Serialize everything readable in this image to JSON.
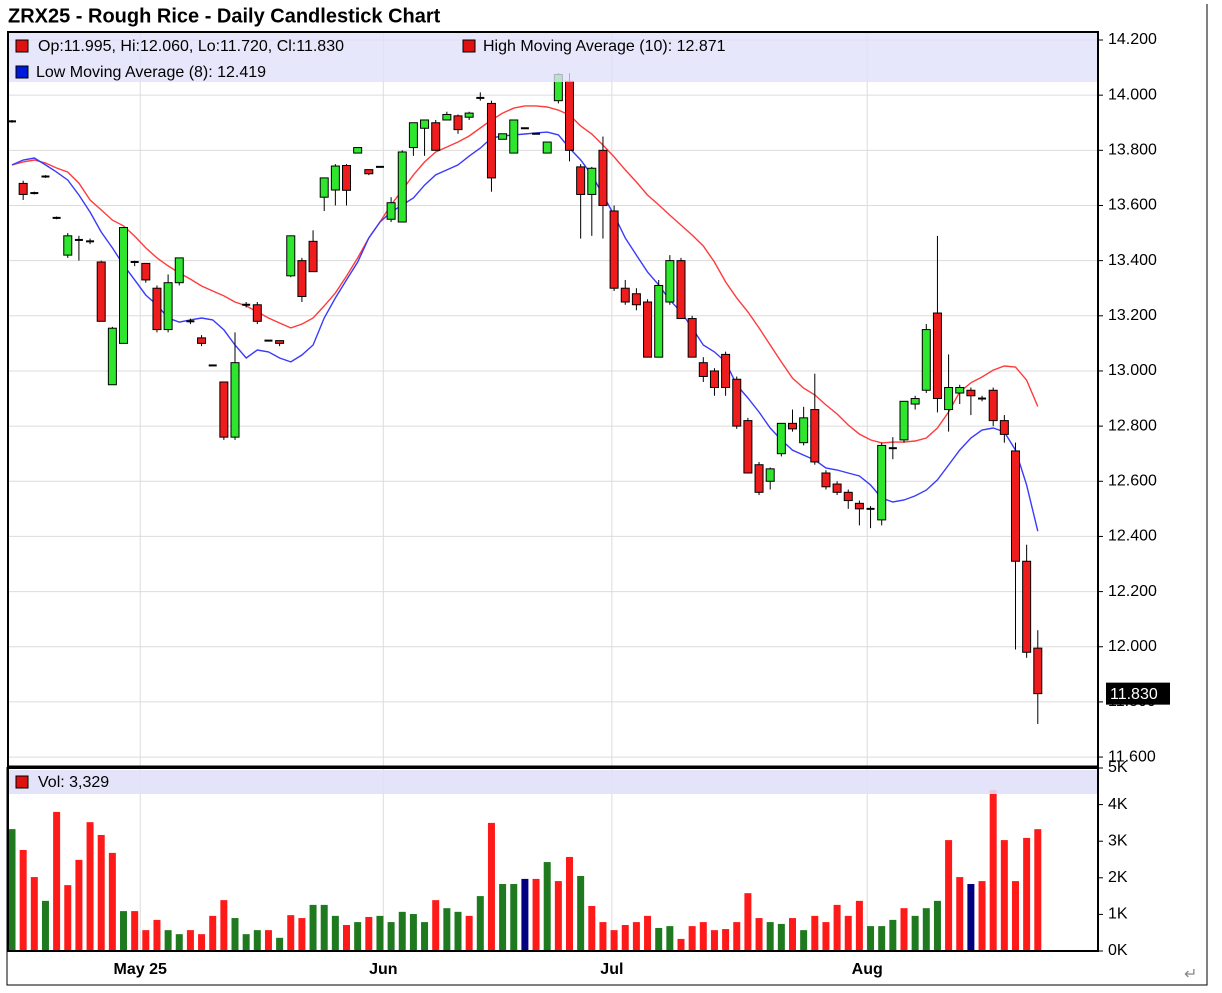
{
  "chart_data": {
    "type": "candlestick",
    "title": "ZRX25 - Rough Rice - Daily Candlestick Chart",
    "xlim": [
      -0.36,
      97.4
    ],
    "xticks": [
      {
        "value": 11.5,
        "label": "May 25"
      },
      {
        "value": 33.3,
        "label": "Jun"
      },
      {
        "value": 53.8,
        "label": "Jul"
      },
      {
        "value": 76.7,
        "label": "Aug"
      }
    ],
    "ylim": [
      11.564,
      14.229
    ],
    "yticks": [
      {
        "value": 11.6,
        "label": "11.600"
      },
      {
        "value": 11.8,
        "label": "11.800"
      },
      {
        "value": 12.0,
        "label": "12.000"
      },
      {
        "value": 12.2,
        "label": "12.200"
      },
      {
        "value": 12.4,
        "label": "12.400"
      },
      {
        "value": 12.6,
        "label": "12.600"
      },
      {
        "value": 12.8,
        "label": "12.800"
      },
      {
        "value": 13.0,
        "label": "13.000"
      },
      {
        "value": 13.2,
        "label": "13.200"
      },
      {
        "value": 13.4,
        "label": "13.400"
      },
      {
        "value": 13.6,
        "label": "13.600"
      },
      {
        "value": 13.8,
        "label": "13.800"
      },
      {
        "value": 14.0,
        "label": "14.000"
      },
      {
        "value": 14.2,
        "label": "14.200"
      }
    ],
    "grid": true,
    "ohlc": {
      "legend": "Op:11.995, Hi:12.060, Lo:11.720, Cl:11.830",
      "legend_color": "#e01010",
      "up_color": "#2ee62e",
      "down_color": "#ee1c1c",
      "open": [
        13.905,
        13.68,
        13.645,
        13.705,
        13.555,
        13.42,
        13.475,
        13.47,
        13.395,
        12.95,
        13.1,
        13.395,
        13.39,
        13.3,
        13.15,
        13.32,
        13.18,
        13.12,
        13.02,
        12.96,
        12.76,
        13.24,
        13.24,
        13.11,
        13.11,
        13.345,
        13.4,
        13.47,
        13.63,
        13.656,
        13.745,
        13.79,
        13.73,
        13.74,
        13.55,
        13.54,
        13.81,
        13.88,
        13.9,
        13.91,
        13.925,
        13.92,
        13.99,
        13.97,
        13.84,
        13.79,
        13.88,
        13.86,
        13.79,
        13.98,
        14.05,
        13.74,
        13.64,
        13.8,
        13.58,
        13.3,
        13.28,
        13.25,
        13.05,
        13.25,
        13.4,
        13.19,
        13.03,
        13.0,
        13.06,
        12.97,
        12.82,
        12.66,
        12.6,
        12.7,
        12.81,
        12.74,
        12.86,
        12.63,
        12.59,
        12.56,
        12.52,
        12.5,
        12.46,
        12.72,
        12.75,
        12.88,
        12.93,
        13.21,
        12.86,
        12.92,
        12.93,
        12.9,
        12.93,
        12.82,
        12.71,
        12.31,
        11.995
      ],
      "high": [
        13.91,
        13.69,
        13.65,
        13.71,
        13.56,
        13.5,
        13.49,
        13.48,
        13.4,
        13.16,
        13.52,
        13.4,
        13.39,
        13.31,
        13.35,
        13.41,
        13.19,
        13.13,
        13.02,
        12.96,
        13.14,
        13.25,
        13.25,
        13.11,
        13.11,
        13.49,
        13.41,
        13.51,
        13.7,
        13.75,
        13.75,
        13.81,
        13.73,
        13.74,
        13.63,
        13.8,
        13.9,
        13.91,
        13.91,
        13.94,
        13.93,
        13.94,
        14.01,
        13.98,
        13.86,
        13.91,
        13.88,
        13.86,
        13.83,
        14.08,
        14.08,
        13.75,
        13.74,
        13.85,
        13.6,
        13.33,
        13.3,
        13.26,
        13.33,
        13.42,
        13.41,
        13.2,
        13.05,
        13.01,
        13.07,
        12.98,
        12.83,
        12.67,
        12.65,
        12.81,
        12.86,
        12.87,
        12.99,
        12.64,
        12.6,
        12.57,
        12.53,
        12.51,
        12.74,
        12.76,
        12.89,
        12.91,
        13.17,
        13.49,
        13.06,
        12.95,
        12.94,
        12.91,
        12.94,
        12.84,
        12.74,
        12.37,
        12.06
      ],
      "low": [
        13.9,
        13.62,
        13.64,
        13.7,
        13.55,
        13.41,
        13.4,
        13.46,
        13.18,
        12.95,
        13.1,
        13.38,
        13.32,
        13.14,
        13.14,
        13.31,
        13.17,
        13.09,
        13.02,
        12.75,
        12.75,
        13.23,
        13.17,
        13.11,
        13.09,
        13.34,
        13.25,
        13.36,
        13.58,
        13.6,
        13.6,
        13.79,
        13.71,
        13.74,
        13.54,
        13.54,
        13.78,
        13.78,
        13.8,
        13.91,
        13.86,
        13.91,
        13.98,
        13.65,
        13.84,
        13.79,
        13.88,
        13.86,
        13.79,
        13.97,
        13.76,
        13.48,
        13.49,
        13.48,
        13.29,
        13.24,
        13.22,
        13.05,
        13.05,
        13.24,
        13.19,
        13.05,
        12.96,
        12.91,
        12.91,
        12.79,
        12.63,
        12.55,
        12.57,
        12.69,
        12.78,
        12.73,
        12.66,
        12.57,
        12.55,
        12.5,
        12.44,
        12.43,
        12.44,
        12.68,
        12.74,
        12.86,
        12.92,
        12.85,
        12.78,
        12.88,
        12.84,
        12.89,
        12.8,
        12.74,
        11.99,
        11.96,
        11.72
      ],
      "close": [
        13.905,
        13.64,
        13.645,
        13.705,
        13.555,
        13.49,
        13.475,
        13.47,
        13.18,
        13.155,
        13.52,
        13.395,
        13.33,
        13.15,
        13.32,
        13.41,
        13.18,
        13.1,
        13.02,
        12.76,
        13.03,
        13.24,
        13.18,
        13.11,
        13.1,
        13.49,
        13.27,
        13.36,
        13.7,
        13.743,
        13.655,
        13.81,
        13.715,
        13.74,
        13.61,
        13.794,
        13.9,
        13.91,
        13.8,
        13.93,
        13.875,
        13.935,
        13.99,
        13.7,
        13.86,
        13.91,
        13.88,
        13.86,
        13.83,
        14.075,
        13.8,
        13.64,
        13.735,
        13.6,
        13.3,
        13.25,
        13.24,
        13.05,
        13.31,
        13.4,
        13.19,
        13.05,
        12.98,
        12.94,
        12.94,
        12.8,
        12.63,
        12.56,
        12.645,
        12.81,
        12.79,
        12.83,
        12.67,
        12.58,
        12.56,
        12.53,
        12.5,
        12.5,
        12.73,
        12.72,
        12.89,
        12.9,
        13.15,
        12.9,
        12.94,
        12.94,
        12.91,
        12.9,
        12.82,
        12.77,
        12.31,
        11.98,
        11.83
      ]
    },
    "last_price_label": "11.830",
    "moving_averages": [
      {
        "name": "High Moving Average (10): 12.871",
        "color": "#ff3b3b",
        "legend_color": "#e01010",
        "values": [
          13.747,
          13.758,
          13.765,
          13.754,
          13.736,
          13.721,
          13.681,
          13.62,
          13.584,
          13.547,
          13.526,
          13.489,
          13.446,
          13.41,
          13.381,
          13.355,
          13.333,
          13.308,
          13.29,
          13.272,
          13.25,
          13.236,
          13.214,
          13.192,
          13.174,
          13.156,
          13.17,
          13.192,
          13.236,
          13.283,
          13.344,
          13.41,
          13.482,
          13.54,
          13.602,
          13.656,
          13.711,
          13.758,
          13.794,
          13.812,
          13.83,
          13.852,
          13.881,
          13.91,
          13.935,
          13.953,
          13.961,
          13.961,
          13.957,
          13.946,
          13.928,
          13.888,
          13.859,
          13.819,
          13.776,
          13.729,
          13.685,
          13.638,
          13.602,
          13.565,
          13.529,
          13.493,
          13.453,
          13.395,
          13.323,
          13.265,
          13.214,
          13.156,
          13.094,
          13.033,
          12.974,
          12.938,
          12.913,
          12.877,
          12.844,
          12.804,
          12.771,
          12.75,
          12.739,
          12.742,
          12.742,
          12.746,
          12.757,
          12.793,
          12.851,
          12.924,
          12.957,
          12.978,
          13.003,
          13.018,
          13.014,
          12.967,
          12.871
        ]
      },
      {
        "name": "Low Moving Average (8): 12.419",
        "color": "#3a3aff",
        "legend_color": "#0018d8",
        "values": [
          13.747,
          13.765,
          13.772,
          13.747,
          13.721,
          13.692,
          13.638,
          13.576,
          13.504,
          13.446,
          13.384,
          13.33,
          13.275,
          13.239,
          13.192,
          13.177,
          13.185,
          13.192,
          13.185,
          13.149,
          13.094,
          13.047,
          13.076,
          13.069,
          13.047,
          13.033,
          13.058,
          13.094,
          13.192,
          13.265,
          13.33,
          13.395,
          13.482,
          13.54,
          13.576,
          13.602,
          13.627,
          13.674,
          13.711,
          13.729,
          13.747,
          13.779,
          13.808,
          13.845,
          13.852,
          13.856,
          13.859,
          13.863,
          13.866,
          13.856,
          13.808,
          13.765,
          13.711,
          13.638,
          13.565,
          13.482,
          13.42,
          13.359,
          13.312,
          13.257,
          13.214,
          13.156,
          13.094,
          13.069,
          13.033,
          12.949,
          12.902,
          12.851,
          12.793,
          12.75,
          12.713,
          12.695,
          12.677,
          12.648,
          12.641,
          12.63,
          12.619,
          12.587,
          12.539,
          12.525,
          12.532,
          12.547,
          12.568,
          12.605,
          12.659,
          12.713,
          12.757,
          12.786,
          12.793,
          12.779,
          12.713,
          12.587,
          12.419
        ]
      }
    ],
    "volume": {
      "legend": "Vol: 3,329",
      "legend_color": "#e01010",
      "ylim": [
        0,
        5000
      ],
      "yticks": [
        {
          "value": 0,
          "label": "0K"
        },
        {
          "value": 1000,
          "label": "1K"
        },
        {
          "value": 2000,
          "label": "2K"
        },
        {
          "value": 3000,
          "label": "3K"
        },
        {
          "value": 4000,
          "label": "4K"
        },
        {
          "value": 5000,
          "label": "5K"
        }
      ],
      "values": [
        3330,
        2760,
        2020,
        1370,
        3800,
        1800,
        2490,
        3520,
        3170,
        2680,
        1090,
        1090,
        570,
        850,
        570,
        460,
        570,
        460,
        960,
        1390,
        900,
        460,
        570,
        570,
        360,
        980,
        900,
        1260,
        1260,
        960,
        710,
        790,
        930,
        960,
        790,
        1070,
        1010,
        790,
        1390,
        1170,
        1070,
        960,
        1500,
        3500,
        1830,
        1830,
        1970,
        1970,
        2430,
        1910,
        2570,
        2050,
        1230,
        790,
        570,
        710,
        790,
        960,
        630,
        680,
        330,
        680,
        790,
        570,
        600,
        790,
        1580,
        900,
        790,
        740,
        900,
        570,
        960,
        790,
        1260,
        960,
        1370,
        680,
        680,
        850,
        1170,
        960,
        1170,
        1370,
        3030,
        2020,
        1830,
        1910,
        4400,
        3030,
        1910,
        3090,
        3329
      ],
      "colors": [
        "#1f7a1f",
        "#ff1a1a",
        "#ff1a1a",
        "#1f7a1f",
        "#ff1a1a",
        "#ff1a1a",
        "#ff1a1a",
        "#ff1a1a",
        "#ff1a1a",
        "#ff1a1a",
        "#1f7a1f",
        "#ff1a1a",
        "#ff1a1a",
        "#ff1a1a",
        "#1f7a1f",
        "#1f7a1f",
        "#ff1a1a",
        "#ff1a1a",
        "#ff1a1a",
        "#ff1a1a",
        "#1f7a1f",
        "#1f7a1f",
        "#1f7a1f",
        "#ff1a1a",
        "#1f7a1f",
        "#ff1a1a",
        "#ff1a1a",
        "#1f7a1f",
        "#1f7a1f",
        "#1f7a1f",
        "#ff1a1a",
        "#1f7a1f",
        "#ff1a1a",
        "#1f7a1f",
        "#1f7a1f",
        "#1f7a1f",
        "#1f7a1f",
        "#1f7a1f",
        "#ff1a1a",
        "#1f7a1f",
        "#1f7a1f",
        "#ff1a1a",
        "#1f7a1f",
        "#ff1a1a",
        "#1f7a1f",
        "#1f7a1f",
        "#000080",
        "#ff1a1a",
        "#1f7a1f",
        "#ff1a1a",
        "#ff1a1a",
        "#1f7a1f",
        "#ff1a1a",
        "#ff1a1a",
        "#ff1a1a",
        "#ff1a1a",
        "#ff1a1a",
        "#ff1a1a",
        "#1f7a1f",
        "#1f7a1f",
        "#ff1a1a",
        "#ff1a1a",
        "#ff1a1a",
        "#ff1a1a",
        "#ff1a1a",
        "#ff1a1a",
        "#ff1a1a",
        "#ff1a1a",
        "#1f7a1f",
        "#1f7a1f",
        "#ff1a1a",
        "#1f7a1f",
        "#ff1a1a",
        "#ff1a1a",
        "#ff1a1a",
        "#ff1a1a",
        "#ff1a1a",
        "#1f7a1f",
        "#1f7a1f",
        "#1f7a1f",
        "#ff1a1a",
        "#1f7a1f",
        "#1f7a1f",
        "#1f7a1f",
        "#ff1a1a",
        "#ff1a1a",
        "#000080",
        "#ff1a1a",
        "#ff1a1a",
        "#ff1a1a",
        "#ff1a1a",
        "#ff1a1a",
        "#ff1a1a"
      ]
    },
    "return_mark": "↵"
  }
}
